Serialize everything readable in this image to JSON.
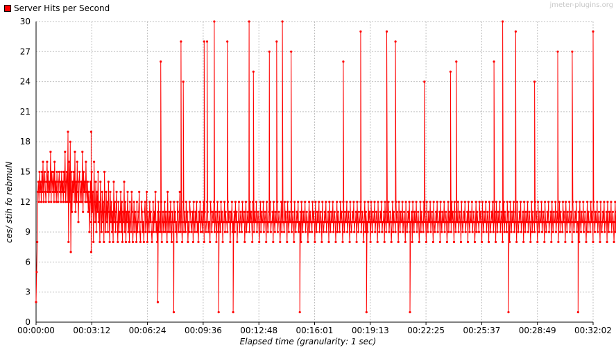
{
  "chart_data": {
    "type": "line",
    "legend": [
      "Server Hits per Second"
    ],
    "legend_placement": "top-left",
    "watermark": "jmeter-plugins.org",
    "xlabel": "Elapsed time (granularity: 1 sec)",
    "ylabel": "Number of hits /sec",
    "ylabel_display": "ces/ stih fo rebmuN",
    "x_unit": "seconds",
    "xlim": [
      0,
      1922
    ],
    "ylim": [
      0,
      30
    ],
    "x_ticks": [
      "00:00:00",
      "00:03:12",
      "00:06:24",
      "00:09:36",
      "00:12:48",
      "00:16:01",
      "00:19:13",
      "00:22:25",
      "00:25:37",
      "00:28:49",
      "00:32:02"
    ],
    "y_ticks": [
      0,
      3,
      6,
      9,
      12,
      15,
      18,
      21,
      24,
      27,
      30
    ],
    "grid": true,
    "series": [
      {
        "name": "Server Hits per Second",
        "color": "#ff0000",
        "x_start": 0,
        "x_step": 2,
        "values": [
          2,
          5,
          8,
          13,
          14,
          12,
          15,
          13,
          14,
          12,
          15,
          13,
          16,
          12,
          14,
          15,
          13,
          12,
          14,
          16,
          13,
          15,
          12,
          14,
          13,
          17,
          12,
          15,
          14,
          13,
          15,
          12,
          16,
          13,
          14,
          12,
          15,
          13,
          12,
          14,
          15,
          13,
          14,
          12,
          15,
          13,
          14,
          12,
          15,
          13,
          17,
          12,
          14,
          15,
          12,
          19,
          8,
          16,
          12,
          18,
          7,
          15,
          11,
          14,
          13,
          15,
          12,
          17,
          11,
          14,
          12,
          16,
          13,
          10,
          14,
          15,
          12,
          13,
          14,
          12,
          17,
          11,
          15,
          13,
          14,
          12,
          16,
          13,
          12,
          14,
          11,
          13,
          9,
          12,
          14,
          10,
          15,
          11,
          13,
          8,
          16,
          12,
          10,
          14,
          9,
          13,
          11,
          15,
          10,
          12,
          8,
          14,
          11,
          9,
          13,
          10,
          12,
          8,
          15,
          11,
          9,
          13,
          10,
          12,
          9,
          14,
          11,
          8,
          13,
          10,
          12,
          9,
          11,
          8,
          14,
          10,
          12,
          9,
          11,
          13,
          10,
          8,
          12,
          9,
          11,
          10,
          13,
          9,
          12,
          8,
          11,
          10,
          14,
          9,
          12,
          8,
          11,
          10,
          13,
          9,
          11,
          8,
          12,
          10,
          9,
          13,
          11,
          8,
          10,
          12,
          9,
          11,
          10,
          8,
          12,
          9,
          10,
          11,
          13,
          9,
          8,
          10,
          12,
          11,
          9,
          10,
          8,
          11,
          12,
          9,
          10,
          13,
          8,
          11,
          10,
          9,
          12,
          10,
          11,
          9,
          8,
          10,
          12,
          9,
          11,
          10,
          13,
          9,
          10,
          8,
          11,
          12,
          9,
          10,
          11,
          9,
          12,
          8,
          10,
          11,
          9,
          10,
          12,
          9,
          11,
          10,
          8,
          13,
          9,
          10,
          11,
          9,
          12,
          10,
          8,
          11,
          10,
          9,
          12,
          10,
          11,
          9,
          10,
          8,
          12,
          11,
          9,
          10,
          13,
          9,
          11,
          10,
          8,
          10,
          12,
          9,
          11,
          10,
          9,
          12,
          10,
          11,
          8,
          10,
          9,
          12,
          11,
          10,
          9,
          10,
          11,
          8,
          12,
          10,
          9,
          11,
          10,
          12,
          9,
          10,
          8,
          11,
          10,
          12,
          9,
          10,
          11,
          9,
          10,
          12,
          8,
          11,
          10,
          9,
          10,
          12,
          11,
          9,
          10,
          10,
          8,
          12,
          11,
          9,
          10,
          11,
          10,
          12,
          9,
          10,
          11,
          8,
          10,
          12,
          9,
          10,
          11,
          10,
          9,
          12,
          10,
          11,
          8,
          10,
          10,
          12,
          9,
          11,
          10,
          10,
          9,
          12,
          10,
          11,
          10,
          8,
          11,
          10,
          12,
          9,
          10,
          10,
          11,
          9,
          12,
          10,
          11,
          8,
          10,
          10,
          12,
          9,
          10,
          11,
          10,
          9,
          12,
          10,
          10,
          11,
          8,
          10,
          12,
          9,
          10,
          11,
          10,
          10,
          9,
          12,
          10,
          11,
          10,
          8,
          12,
          10,
          9,
          11,
          10,
          10,
          12,
          9,
          10,
          11,
          10,
          8,
          10,
          12,
          9,
          11,
          10,
          10,
          12,
          9,
          10,
          11,
          10,
          8,
          12,
          10,
          9,
          10,
          11,
          10,
          12,
          9,
          10,
          10,
          11,
          8,
          12,
          10,
          9,
          11,
          10,
          10,
          12,
          9,
          10,
          11,
          10,
          8,
          10,
          12,
          9,
          11,
          10,
          10,
          9,
          12,
          10,
          11,
          10,
          8,
          12,
          10,
          9,
          11,
          10,
          10,
          12,
          9,
          10,
          11,
          10,
          8,
          12,
          10,
          9,
          10,
          11,
          10,
          12,
          9,
          10,
          10,
          11,
          8,
          12,
          10,
          9,
          11,
          10,
          10,
          12,
          9,
          10,
          11,
          10,
          8,
          10,
          12,
          9,
          11,
          10,
          10,
          9,
          12,
          10,
          11,
          10,
          8,
          12,
          10,
          9,
          11,
          10,
          10,
          12,
          9,
          10,
          11,
          10,
          8,
          12,
          10,
          9,
          10,
          11,
          10,
          12,
          9,
          10,
          10,
          11,
          8,
          12,
          10,
          9,
          11,
          10,
          10,
          12,
          9,
          10,
          11,
          10,
          8,
          10,
          12,
          9,
          11,
          10,
          10,
          9,
          12,
          10,
          11,
          10,
          8,
          12,
          10,
          9,
          11,
          10,
          10,
          12,
          9,
          10,
          11,
          10,
          8,
          12,
          10,
          9,
          10,
          11,
          10,
          12,
          9,
          10,
          10,
          11,
          8,
          12,
          10,
          9,
          11,
          10,
          10,
          12,
          9,
          10,
          11,
          10,
          8,
          10,
          12,
          9,
          11,
          10,
          10,
          9,
          12,
          10,
          11,
          10,
          8,
          12,
          10,
          9,
          11,
          10,
          10,
          12,
          9,
          10,
          11,
          10,
          8,
          12,
          10,
          9,
          10,
          11,
          10,
          12,
          9,
          10,
          10,
          11,
          8,
          12,
          10,
          9,
          11,
          10,
          10,
          12,
          9,
          10,
          11,
          10,
          8,
          10,
          12,
          9,
          11,
          10,
          10,
          9,
          12,
          10,
          11,
          10,
          8,
          12,
          10,
          9,
          11,
          10,
          10,
          12,
          9,
          10,
          11,
          10,
          8,
          12,
          10,
          9,
          10,
          11,
          10,
          12,
          9,
          10,
          10,
          11,
          8,
          12,
          10,
          9,
          11,
          10,
          10,
          12,
          9,
          10,
          11,
          10,
          8,
          10,
          12,
          9,
          11,
          10,
          10,
          9,
          12,
          10,
          11,
          10,
          8,
          12,
          10,
          9,
          11,
          10,
          10,
          12,
          9,
          10,
          11,
          10,
          8,
          12,
          10,
          9,
          10,
          11,
          10,
          12,
          9,
          10,
          10,
          11,
          8,
          12,
          10,
          9,
          11,
          10,
          10,
          12,
          9,
          10,
          11,
          10,
          8,
          10,
          12,
          9,
          11,
          10,
          10,
          9,
          12,
          10,
          11,
          10,
          8,
          12,
          10,
          9,
          11,
          10,
          10,
          12,
          9,
          10,
          11,
          10,
          8,
          12,
          10,
          9,
          10,
          11,
          10,
          12,
          9,
          10,
          10,
          11,
          8,
          12,
          10,
          9,
          11,
          10,
          10,
          12,
          9,
          10,
          11,
          10,
          8,
          10,
          12,
          9,
          11,
          10,
          10,
          9,
          12,
          10,
          11,
          10,
          8,
          12,
          10,
          9,
          11,
          10,
          10,
          12,
          9,
          10,
          11,
          10,
          8,
          12,
          10,
          9,
          10,
          11,
          10,
          12,
          9,
          10,
          10,
          11,
          8,
          12,
          10,
          9,
          11,
          10,
          10,
          12,
          9,
          10,
          11,
          10,
          8,
          10,
          12,
          9,
          11,
          10,
          10,
          9,
          12,
          10,
          11,
          10,
          8,
          12,
          10,
          9,
          11,
          10,
          10,
          12,
          9,
          10,
          11,
          10,
          8,
          12,
          10,
          9,
          10,
          11,
          10,
          12,
          9,
          10,
          10,
          11,
          8,
          12,
          10,
          9,
          11,
          10,
          10,
          12,
          9,
          10,
          11,
          10,
          8,
          10,
          12,
          9,
          11,
          10,
          10,
          9,
          12,
          10,
          11,
          10,
          8,
          12,
          10,
          9,
          11,
          10,
          10,
          12,
          9,
          10,
          11,
          10,
          8,
          12,
          10,
          9,
          10,
          11,
          10,
          12,
          9,
          10,
          10,
          11,
          8,
          12,
          10,
          9,
          11,
          10,
          10,
          12,
          9,
          10,
          11,
          10,
          8,
          10,
          12,
          9,
          11,
          10,
          10,
          9,
          12,
          10,
          11,
          10,
          8,
          12,
          10,
          9,
          11,
          10,
          10,
          12,
          9,
          10,
          11,
          10,
          8,
          12,
          10,
          9,
          10,
          11,
          10,
          12,
          9,
          10,
          10,
          11,
          8,
          12,
          10,
          9,
          11,
          10,
          10,
          12,
          9,
          10,
          11,
          10,
          8,
          10,
          12,
          9,
          11,
          10,
          10,
          9,
          12,
          10,
          11,
          10,
          8,
          12,
          10,
          9,
          11,
          10,
          10,
          12,
          9,
          10,
          11,
          10,
          8,
          12,
          10,
          9,
          10,
          11,
          10,
          12,
          9,
          10,
          10,
          11,
          8,
          12,
          10,
          9,
          11,
          10,
          10,
          12,
          9,
          10,
          11,
          10,
          8,
          10,
          12,
          9,
          11,
          10,
          10,
          9,
          12,
          10,
          11,
          10,
          8,
          12,
          10,
          9,
          11,
          10,
          10,
          12,
          9,
          10,
          11,
          10,
          8,
          12,
          10,
          9,
          10,
          11,
          10,
          12,
          9,
          10,
          10,
          11,
          8,
          12,
          10,
          9,
          11,
          10,
          10,
          12,
          9,
          10,
          11,
          10,
          8,
          10,
          12,
          9,
          11,
          10,
          10,
          9,
          12,
          10,
          11,
          10,
          8,
          12,
          10,
          9,
          11,
          10,
          10,
          12,
          9,
          10,
          11,
          10,
          8,
          12,
          10,
          9,
          10,
          11,
          10,
          12,
          9,
          10,
          10,
          11,
          8,
          12,
          10,
          9,
          11,
          10,
          10,
          12,
          9,
          10,
          11,
          10,
          8,
          10,
          12,
          9,
          11,
          10,
          10,
          9,
          12,
          10,
          11,
          10,
          8,
          12,
          10,
          9,
          11,
          10,
          10,
          12,
          9,
          10,
          29
        ]
      }
    ],
    "peaks": [
      {
        "x": 190,
        "y": 19
      },
      {
        "x": 190,
        "y": 7
      },
      {
        "x": 420,
        "y": 2
      },
      {
        "x": 430,
        "y": 26
      },
      {
        "x": 475,
        "y": 1
      },
      {
        "x": 500,
        "y": 28
      },
      {
        "x": 508,
        "y": 24
      },
      {
        "x": 580,
        "y": 28
      },
      {
        "x": 590,
        "y": 28
      },
      {
        "x": 615,
        "y": 30
      },
      {
        "x": 630,
        "y": 1
      },
      {
        "x": 660,
        "y": 28
      },
      {
        "x": 680,
        "y": 1
      },
      {
        "x": 735,
        "y": 30
      },
      {
        "x": 750,
        "y": 25
      },
      {
        "x": 805,
        "y": 27
      },
      {
        "x": 830,
        "y": 28
      },
      {
        "x": 850,
        "y": 30
      },
      {
        "x": 880,
        "y": 27
      },
      {
        "x": 910,
        "y": 1
      },
      {
        "x": 1060,
        "y": 26
      },
      {
        "x": 1120,
        "y": 29
      },
      {
        "x": 1140,
        "y": 1
      },
      {
        "x": 1210,
        "y": 29
      },
      {
        "x": 1240,
        "y": 28
      },
      {
        "x": 1290,
        "y": 1
      },
      {
        "x": 1340,
        "y": 24
      },
      {
        "x": 1430,
        "y": 25
      },
      {
        "x": 1450,
        "y": 26
      },
      {
        "x": 1580,
        "y": 26
      },
      {
        "x": 1610,
        "y": 30
      },
      {
        "x": 1630,
        "y": 1
      },
      {
        "x": 1655,
        "y": 29
      },
      {
        "x": 1720,
        "y": 24
      },
      {
        "x": 1800,
        "y": 27
      },
      {
        "x": 1850,
        "y": 27
      },
      {
        "x": 1870,
        "y": 1
      },
      {
        "x": 1922,
        "y": 29
      }
    ]
  }
}
